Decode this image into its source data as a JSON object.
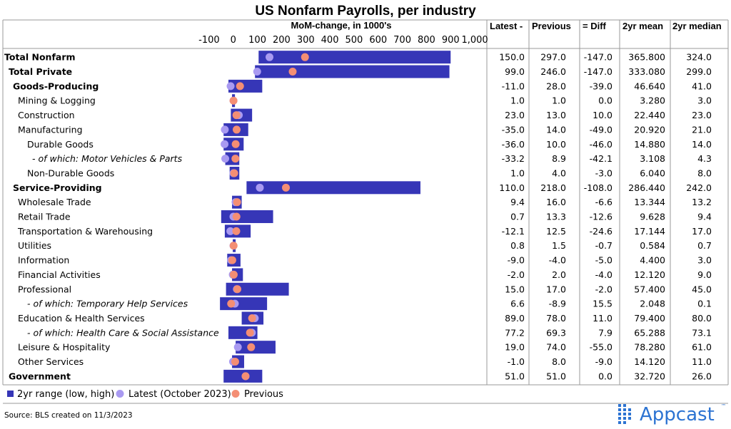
{
  "title": "US Nonfarm Payrolls, per industry",
  "axis_label": "MoM-change, in 1000's",
  "columns": [
    "Latest -",
    "Previous",
    "= Diff",
    "2yr mean",
    "2yr median"
  ],
  "legend": {
    "range": "2yr range (low, high)",
    "latest": "Latest (October 2023)",
    "previous": "Previous"
  },
  "source": "Source: BLS created on 11/3/2023",
  "logo": {
    "name": "Appcast",
    "tm": "™"
  },
  "colors": {
    "bar": "#3636b7",
    "latest": "#a99af1",
    "previous": "#f48e74",
    "logo": "#2c73d2"
  },
  "chart_data": {
    "type": "bar",
    "orientation": "horizontal",
    "xlim": [
      -150,
      1050
    ],
    "ticks": [
      -100,
      0,
      100,
      200,
      300,
      400,
      500,
      600,
      700,
      800,
      900,
      1000
    ],
    "tick_labels": [
      "-100",
      "0",
      "100",
      "200",
      "300",
      "400",
      "500",
      "600",
      "700",
      "800",
      "900",
      "1,000"
    ],
    "rows": [
      {
        "label": "Total Nonfarm",
        "style": "bold",
        "indent": 0,
        "low": 105,
        "high": 900,
        "latest": 150.0,
        "previous": 297.0,
        "cells": [
          "150.0",
          "297.0",
          "-147.0",
          "365.800",
          "324.0"
        ]
      },
      {
        "label": "Total Private",
        "style": "bold",
        "indent": 1,
        "low": 90,
        "high": 895,
        "latest": 99.0,
        "previous": 246.0,
        "cells": [
          "99.0",
          "246.0",
          "-147.0",
          "333.080",
          "299.0"
        ]
      },
      {
        "label": "Goods-Producing",
        "style": "bold",
        "indent": 2,
        "low": -20,
        "high": 120,
        "latest": -11.0,
        "previous": 28.0,
        "cells": [
          "-11.0",
          "28.0",
          "-39.0",
          "46.640",
          "41.0"
        ]
      },
      {
        "label": "Mining & Logging",
        "style": "normal",
        "indent": 3,
        "low": -5,
        "high": 7,
        "latest": 1.0,
        "previous": 1.0,
        "cells": [
          "1.0",
          "1.0",
          "0.0",
          "3.280",
          "3.0"
        ]
      },
      {
        "label": "Construction",
        "style": "normal",
        "indent": 3,
        "low": -10,
        "high": 78,
        "latest": 23.0,
        "previous": 13.0,
        "cells": [
          "23.0",
          "13.0",
          "10.0",
          "22.440",
          "23.0"
        ]
      },
      {
        "label": "Manufacturing",
        "style": "normal",
        "indent": 3,
        "low": -40,
        "high": 62,
        "latest": -35.0,
        "previous": 14.0,
        "cells": [
          "-35.0",
          "14.0",
          "-49.0",
          "20.920",
          "21.0"
        ]
      },
      {
        "label": "Durable Goods",
        "style": "normal",
        "indent": 4,
        "low": -40,
        "high": 43,
        "latest": -36.0,
        "previous": 10.0,
        "cells": [
          "-36.0",
          "10.0",
          "-46.0",
          "14.880",
          "14.0"
        ]
      },
      {
        "label": "- of which: Motor Vehicles & Parts",
        "style": "italic",
        "indent": 5,
        "low": -33,
        "high": 25,
        "latest": -33.2,
        "previous": 8.9,
        "cells": [
          "-33.2",
          "8.9",
          "-42.1",
          "3.108",
          "4.3"
        ]
      },
      {
        "label": "Non-Durable Goods",
        "style": "normal",
        "indent": 4,
        "low": -15,
        "high": 25,
        "latest": 1.0,
        "previous": 4.0,
        "cells": [
          "1.0",
          "4.0",
          "-3.0",
          "6.040",
          "8.0"
        ]
      },
      {
        "label": "Service-Providing",
        "style": "bold",
        "indent": 2,
        "low": 55,
        "high": 775,
        "latest": 110.0,
        "previous": 218.0,
        "cells": [
          "110.0",
          "218.0",
          "-108.0",
          "286.440",
          "242.0"
        ]
      },
      {
        "label": "Wholesale Trade",
        "style": "normal",
        "indent": 3,
        "low": -5,
        "high": 35,
        "latest": 9.4,
        "previous": 16.0,
        "cells": [
          "9.4",
          "16.0",
          "-6.6",
          "13.344",
          "13.2"
        ]
      },
      {
        "label": "Retail Trade",
        "style": "normal",
        "indent": 3,
        "low": -50,
        "high": 165,
        "latest": 0.7,
        "previous": 13.3,
        "cells": [
          "0.7",
          "13.3",
          "-12.6",
          "9.628",
          "9.4"
        ]
      },
      {
        "label": "Transportation & Warehousing",
        "style": "normal",
        "indent": 3,
        "low": -35,
        "high": 72,
        "latest": -12.1,
        "previous": 12.5,
        "cells": [
          "-12.1",
          "12.5",
          "-24.6",
          "17.144",
          "17.0"
        ]
      },
      {
        "label": "Utilities",
        "style": "normal",
        "indent": 3,
        "low": -2,
        "high": 3,
        "latest": 0.8,
        "previous": 1.5,
        "cells": [
          "0.8",
          "1.5",
          "-0.7",
          "0.584",
          "0.7"
        ]
      },
      {
        "label": "Information",
        "style": "normal",
        "indent": 3,
        "low": -25,
        "high": 30,
        "latest": -9.0,
        "previous": -4.0,
        "cells": [
          "-9.0",
          "-4.0",
          "-5.0",
          "4.400",
          "3.0"
        ]
      },
      {
        "label": "Financial Activities",
        "style": "normal",
        "indent": 3,
        "low": -5,
        "high": 40,
        "latest": -2.0,
        "previous": 2.0,
        "cells": [
          "-2.0",
          "2.0",
          "-4.0",
          "12.120",
          "9.0"
        ]
      },
      {
        "label": "Professional",
        "style": "normal",
        "indent": 3,
        "low": -30,
        "high": 230,
        "latest": 15.0,
        "previous": 17.0,
        "cells": [
          "15.0",
          "17.0",
          "-2.0",
          "57.400",
          "45.0"
        ]
      },
      {
        "label": "- of which: Temporary Help Services",
        "style": "italic",
        "indent": 4,
        "low": -55,
        "high": 140,
        "latest": 6.6,
        "previous": -8.9,
        "cells": [
          "6.6",
          "-8.9",
          "15.5",
          "2.048",
          "0.1"
        ]
      },
      {
        "label": "Education & Health Services",
        "style": "normal",
        "indent": 3,
        "low": 35,
        "high": 125,
        "latest": 89.0,
        "previous": 78.0,
        "cells": [
          "89.0",
          "78.0",
          "11.0",
          "79.400",
          "80.0"
        ]
      },
      {
        "label": "- of which: Health Care & Social Assistance",
        "style": "italic",
        "indent": 4,
        "low": -20,
        "high": 100,
        "latest": 77.2,
        "previous": 69.3,
        "cells": [
          "77.2",
          "69.3",
          "7.9",
          "65.288",
          "73.1"
        ]
      },
      {
        "label": "Leisure & Hospitality",
        "style": "normal",
        "indent": 3,
        "low": 10,
        "high": 175,
        "latest": 19.0,
        "previous": 74.0,
        "cells": [
          "19.0",
          "74.0",
          "-55.0",
          "78.280",
          "61.0"
        ]
      },
      {
        "label": "Other Services",
        "style": "normal",
        "indent": 3,
        "low": -5,
        "high": 45,
        "latest": -1.0,
        "previous": 8.0,
        "cells": [
          "-1.0",
          "8.0",
          "-9.0",
          "14.120",
          "11.0"
        ]
      },
      {
        "label": "Government",
        "style": "bold",
        "indent": 1,
        "low": -40,
        "high": 120,
        "latest": 51.0,
        "previous": 51.0,
        "cells": [
          "51.0",
          "51.0",
          "0.0",
          "32.720",
          "26.0"
        ]
      }
    ]
  }
}
